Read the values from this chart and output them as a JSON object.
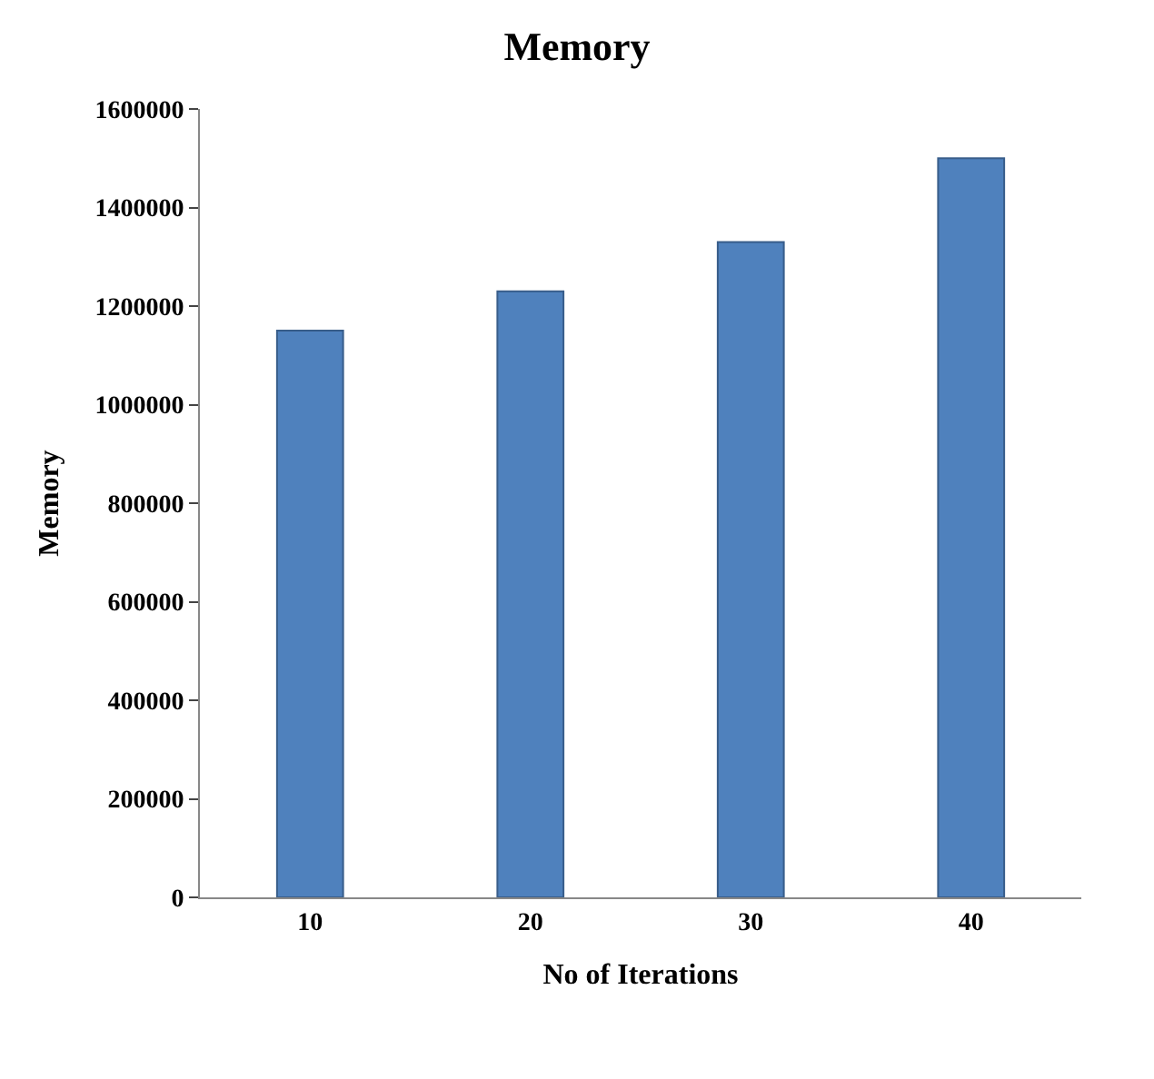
{
  "chart_data": {
    "type": "bar",
    "title": "Memory",
    "xlabel": "No of Iterations",
    "ylabel": "Memory",
    "categories": [
      "10",
      "20",
      "30",
      "40"
    ],
    "values": [
      1150000,
      1230000,
      1330000,
      1500000
    ],
    "color": "#4f81bd",
    "ylim": [
      0,
      1600000
    ],
    "yticks": [
      0,
      200000,
      400000,
      600000,
      800000,
      1000000,
      1200000,
      1400000,
      1600000
    ],
    "legend": false
  }
}
